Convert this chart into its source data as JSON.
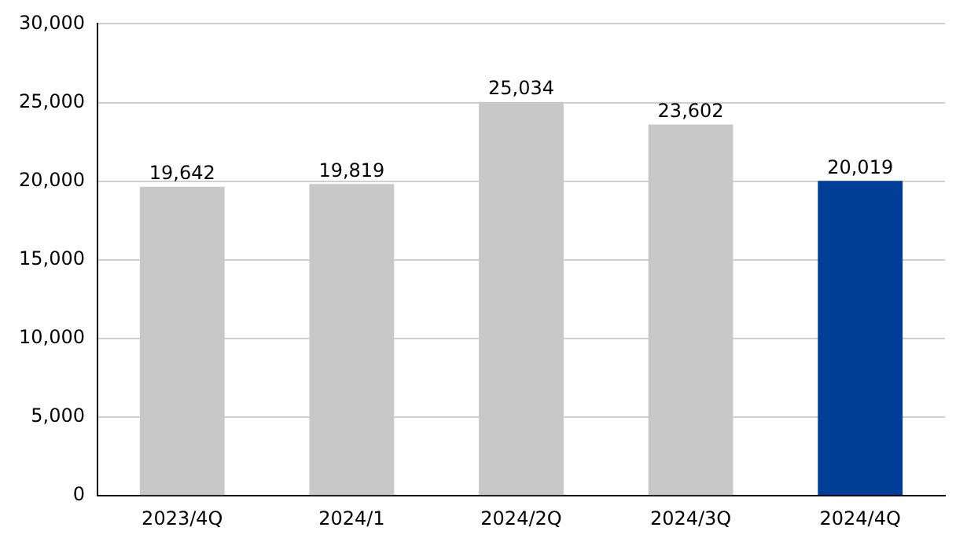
{
  "chart_data": {
    "type": "bar",
    "categories": [
      "2023/4Q",
      "2024/1",
      "2024/2Q",
      "2024/3Q",
      "2024/4Q"
    ],
    "values": [
      19642,
      19819,
      25034,
      23602,
      20019
    ],
    "colors": [
      "#c8c8c8",
      "#c8c8c8",
      "#c8c8c8",
      "#c8c8c8",
      "#003f98"
    ],
    "ylim": [
      0,
      30000
    ],
    "yticks": [
      {
        "value": 0,
        "label": "0"
      },
      {
        "value": 5000,
        "label": "5,000"
      },
      {
        "value": 10000,
        "label": "10,000"
      },
      {
        "value": 15000,
        "label": "15,000"
      },
      {
        "value": 20000,
        "label": "20,000"
      },
      {
        "value": 25000,
        "label": "25,000"
      },
      {
        "value": 30000,
        "label": "30,000"
      }
    ],
    "value_labels": [
      "19,642",
      "19,819",
      "25,034",
      "23,602",
      "20,019"
    ],
    "grid": "y"
  }
}
